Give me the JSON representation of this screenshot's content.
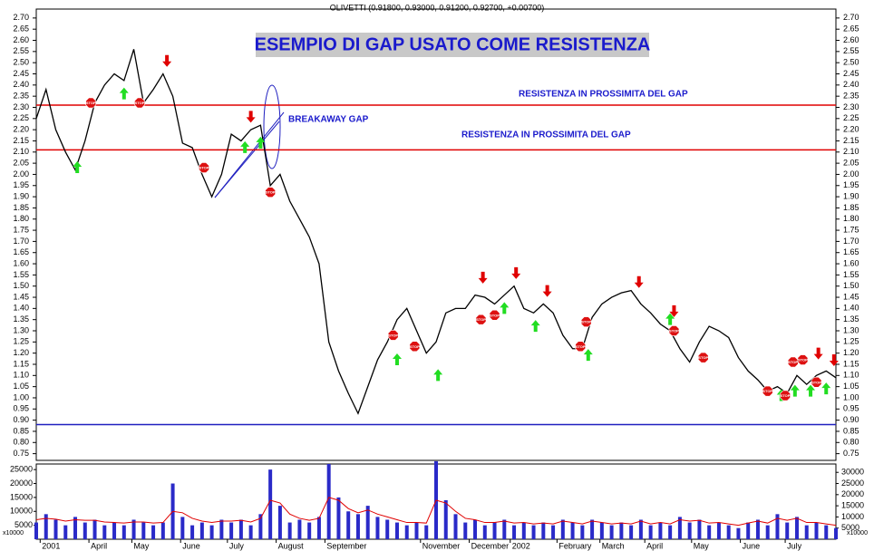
{
  "chart_data": [
    {
      "type": "line",
      "title": "OLIVETTI (0.91800, 0.93000, 0.91200, 0.92700, +0.00700)",
      "heading": "ESEMPIO DI GAP USATO COME RESISTENZA",
      "resistance_labels": [
        "RESISTENZA IN PROSSIMITA DEL GAP",
        "RESISTENZA IN PROSSIMITA DEL GAP"
      ],
      "gap_label": "BREAKAWAY GAP",
      "stop_label": "STOP",
      "x": [
        0,
        5,
        10,
        15,
        20,
        25,
        30,
        35,
        40,
        45,
        50,
        55,
        60,
        65,
        70,
        75,
        80,
        85,
        90,
        95,
        100,
        105,
        110,
        115,
        120,
        125,
        130,
        135,
        140,
        145,
        150,
        155,
        160,
        165,
        170,
        175,
        180,
        185,
        190,
        195,
        200,
        205,
        210,
        215,
        220,
        225,
        230,
        235,
        240,
        245,
        250,
        255,
        260,
        265,
        270,
        275,
        280,
        285,
        290,
        295,
        300,
        305,
        310,
        315,
        320,
        325,
        330,
        335,
        340,
        345,
        350,
        355,
        360,
        365,
        370,
        375,
        380,
        385,
        390,
        395,
        400,
        405,
        410
      ],
      "series": [
        {
          "color": "#000000",
          "values": [
            2.25,
            2.38,
            2.2,
            2.1,
            2.02,
            2.15,
            2.32,
            2.4,
            2.45,
            2.42,
            2.56,
            2.32,
            2.38,
            2.45,
            2.35,
            2.14,
            2.12,
            2.0,
            1.9,
            2.0,
            2.18,
            2.15,
            2.2,
            2.22,
            1.95,
            2.0,
            1.88,
            1.8,
            1.72,
            1.6,
            1.25,
            1.12,
            1.02,
            0.93,
            1.05,
            1.17,
            1.25,
            1.35,
            1.4,
            1.3,
            1.2,
            1.25,
            1.38,
            1.4,
            1.4,
            1.46,
            1.45,
            1.42,
            1.46,
            1.5,
            1.4,
            1.38,
            1.42,
            1.38,
            1.28,
            1.22,
            1.22,
            1.36,
            1.42,
            1.45,
            1.47,
            1.48,
            1.42,
            1.38,
            1.33,
            1.3,
            1.22,
            1.16,
            1.25,
            1.32,
            1.3,
            1.27,
            1.18,
            1.12,
            1.08,
            1.03,
            1.05,
            1.02,
            1.1,
            1.06,
            1.1,
            1.12,
            1.09
          ]
        }
      ],
      "xlim": [
        0,
        410
      ],
      "ylim": [
        0.72,
        2.74
      ],
      "yticks": [
        0.75,
        {
          "value": 0.8,
          "label": "0.80"
        },
        0.85,
        {
          "value": 0.9,
          "label": "0.90"
        },
        0.95,
        {
          "value": 1,
          "label": "1.00"
        },
        1.05,
        {
          "value": 1.1,
          "label": "1.10"
        },
        1.15,
        {
          "value": 1.2,
          "label": "1.20"
        },
        1.25,
        {
          "value": 1.3,
          "label": "1.30"
        },
        1.35,
        {
          "value": 1.4,
          "label": "1.40"
        },
        1.45,
        {
          "value": 1.5,
          "label": "1.50"
        },
        1.55,
        {
          "value": 1.6,
          "label": "1.60"
        },
        1.65,
        {
          "value": 1.7,
          "label": "1.70"
        },
        1.75,
        {
          "value": 1.8,
          "label": "1.80"
        },
        1.85,
        {
          "value": 1.9,
          "label": "1.90"
        },
        1.95,
        {
          "value": 2,
          "label": "2.00"
        },
        2.05,
        {
          "value": 2.1,
          "label": "2.10"
        },
        2.15,
        {
          "value": 2.2,
          "label": "2.20"
        },
        2.25,
        {
          "value": 2.3,
          "label": "2.30"
        },
        2.35,
        {
          "value": 2.4,
          "label": "2.40"
        },
        2.45,
        {
          "value": 2.5,
          "label": "2.50"
        },
        2.55,
        {
          "value": 2.6,
          "label": "2.60"
        },
        2.65,
        {
          "value": 2.7,
          "label": "2.70"
        }
      ],
      "hlines": [
        {
          "value": 2.31,
          "color": "#e00000"
        },
        {
          "value": 2.11,
          "color": "#e00000"
        },
        {
          "value": 0.88,
          "color": "#2020c0"
        }
      ],
      "up_arrows": {
        "color": "#22dd22",
        "x": [
          21,
          45,
          107,
          115,
          185,
          206,
          240,
          256,
          283,
          325,
          382,
          389,
          397,
          405
        ],
        "y": [
          2.03,
          2.36,
          2.12,
          2.14,
          1.17,
          1.1,
          1.4,
          1.32,
          1.19,
          1.35,
          1.01,
          1.03,
          1.03,
          1.04
        ]
      },
      "down_arrows": {
        "color": "#e00000",
        "x": [
          67,
          110,
          229,
          246,
          262,
          309,
          327,
          401,
          409
        ],
        "y": [
          2.51,
          2.26,
          1.54,
          1.56,
          1.48,
          1.52,
          1.39,
          1.2,
          1.17
        ]
      },
      "stops": {
        "color": "#dd1111",
        "x": [
          28,
          53,
          86,
          120,
          183,
          194,
          228,
          235,
          279,
          282,
          327,
          342,
          375,
          384,
          388,
          393,
          400
        ],
        "y": [
          2.32,
          2.32,
          2.03,
          1.92,
          1.28,
          1.23,
          1.35,
          1.37,
          1.23,
          1.34,
          1.3,
          1.18,
          1.03,
          1.01,
          1.16,
          1.17,
          1.07
        ]
      }
    },
    {
      "type": "bar",
      "unit_label": "x10000",
      "x": [
        0,
        5,
        10,
        15,
        20,
        25,
        30,
        35,
        40,
        45,
        50,
        55,
        60,
        65,
        70,
        75,
        80,
        85,
        90,
        95,
        100,
        105,
        110,
        115,
        120,
        125,
        130,
        135,
        140,
        145,
        150,
        155,
        160,
        165,
        170,
        175,
        180,
        185,
        190,
        195,
        200,
        205,
        210,
        215,
        220,
        225,
        230,
        235,
        240,
        245,
        250,
        255,
        260,
        265,
        270,
        275,
        280,
        285,
        290,
        295,
        300,
        305,
        310,
        315,
        320,
        325,
        330,
        335,
        340,
        345,
        350,
        355,
        360,
        365,
        370,
        375,
        380,
        385,
        390,
        395,
        400,
        405,
        410
      ],
      "series": [
        {
          "color": "#2a2ac8",
          "values": [
            6000,
            9000,
            7000,
            5000,
            8000,
            6000,
            7000,
            5000,
            6000,
            5000,
            7000,
            6000,
            5000,
            6000,
            20000,
            8000,
            5000,
            6000,
            5000,
            7000,
            6000,
            7000,
            5000,
            9000,
            25000,
            12000,
            6000,
            7000,
            6000,
            8000,
            27000,
            15000,
            10000,
            9000,
            12000,
            8000,
            7000,
            6000,
            5000,
            6000,
            5000,
            28000,
            14000,
            9000,
            6000,
            7000,
            5000,
            6000,
            7000,
            5000,
            6000,
            5000,
            6000,
            5000,
            7000,
            6000,
            5000,
            7000,
            6000,
            5000,
            6000,
            5000,
            7000,
            5000,
            6000,
            5000,
            8000,
            6000,
            7000,
            5000,
            6000,
            5000,
            4000,
            6000,
            7000,
            5000,
            9000,
            6000,
            8000,
            5000,
            6000,
            5000,
            4000
          ]
        },
        {
          "color": "#e00000",
          "values": [
            7000,
            7500,
            7200,
            6500,
            7000,
            6800,
            6800,
            6200,
            6000,
            5800,
            6200,
            6200,
            5800,
            6000,
            10000,
            9500,
            7500,
            6500,
            6000,
            6500,
            6500,
            6800,
            6200,
            7500,
            14000,
            13000,
            9000,
            7500,
            6800,
            7500,
            15000,
            14000,
            11000,
            9500,
            10500,
            9000,
            8000,
            7000,
            6000,
            6000,
            5800,
            14000,
            13000,
            10000,
            7500,
            7000,
            6000,
            6000,
            6500,
            5800,
            6000,
            5500,
            5800,
            5500,
            6500,
            6000,
            5500,
            6500,
            6000,
            5500,
            5800,
            5500,
            6500,
            5500,
            6000,
            5500,
            7000,
            6500,
            6800,
            5800,
            6000,
            5500,
            5000,
            5800,
            6500,
            5800,
            7500,
            6800,
            7500,
            6000,
            6000,
            5500,
            5000
          ]
        }
      ],
      "xlim": [
        0,
        410
      ],
      "ylim": [
        0,
        27000
      ],
      "yticks": [
        5000,
        10000,
        15000,
        20000,
        25000
      ],
      "y2lim": [
        0,
        33750
      ],
      "y2ticks": [
        5000,
        10000,
        15000,
        20000,
        25000,
        30000
      ],
      "xticks": [
        {
          "value": 2,
          "label": "2001"
        },
        {
          "value": 27,
          "label": "April"
        },
        {
          "value": 49,
          "label": "May"
        },
        {
          "value": 74,
          "label": "June"
        },
        {
          "value": 98,
          "label": "July"
        },
        {
          "value": 123,
          "label": "August"
        },
        {
          "value": 148,
          "label": "September"
        },
        {
          "value": 197,
          "label": "November"
        },
        {
          "value": 222,
          "label": "December"
        },
        {
          "value": 243,
          "label": "2002"
        },
        {
          "value": 267,
          "label": "February"
        },
        {
          "value": 289,
          "label": "March"
        },
        {
          "value": 312,
          "label": "April"
        },
        {
          "value": 336,
          "label": "May"
        },
        {
          "value": 361,
          "label": "June"
        },
        {
          "value": 384,
          "label": "July"
        }
      ]
    }
  ]
}
